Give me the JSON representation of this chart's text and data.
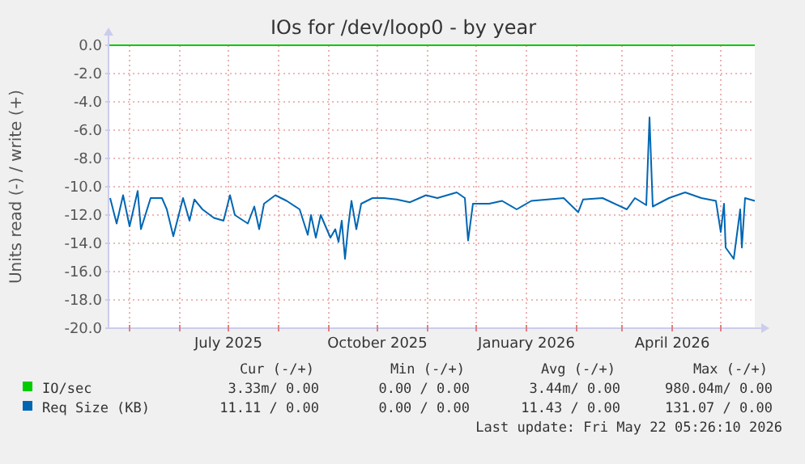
{
  "chart_data": {
    "type": "line",
    "title": "IOs for /dev/loop0 - by year",
    "ylabel": "Units read (-) / write (+)",
    "xlim": [
      "2025-04-18",
      "2026-05-22"
    ],
    "ylim": [
      -20,
      0
    ],
    "xticks": [
      {
        "value": "2025-05-01",
        "label": null
      },
      {
        "value": "2025-06-01",
        "label": null
      },
      {
        "value": "2025-07-01",
        "label": "July 2025"
      },
      {
        "value": "2025-08-01",
        "label": null
      },
      {
        "value": "2025-09-01",
        "label": null
      },
      {
        "value": "2025-10-01",
        "label": "October 2025"
      },
      {
        "value": "2025-11-01",
        "label": null
      },
      {
        "value": "2025-12-01",
        "label": null
      },
      {
        "value": "2026-01-01",
        "label": "January 2026"
      },
      {
        "value": "2026-02-01",
        "label": null
      },
      {
        "value": "2026-03-01",
        "label": null
      },
      {
        "value": "2026-04-01",
        "label": "April 2026"
      },
      {
        "value": "2026-05-01",
        "label": null
      }
    ],
    "yticks": [
      {
        "value": 0,
        "label": "0.0"
      },
      {
        "value": -2,
        "label": "-2.0"
      },
      {
        "value": -4,
        "label": "-4.0"
      },
      {
        "value": -6,
        "label": "-6.0"
      },
      {
        "value": -8,
        "label": "-8.0"
      },
      {
        "value": -10,
        "label": "-10.0"
      },
      {
        "value": -12,
        "label": "-12.0"
      },
      {
        "value": -14,
        "label": "-14.0"
      },
      {
        "value": -16,
        "label": "-16.0"
      },
      {
        "value": -18,
        "label": "-18.0"
      },
      {
        "value": -20,
        "label": "-20.0"
      }
    ],
    "grid": true,
    "legend": "bottom",
    "series": [
      {
        "name": "IO/sec",
        "color": "#00cc00",
        "x": [
          "2025-04-18",
          "2026-05-22"
        ],
        "values": [
          0,
          0
        ]
      },
      {
        "name": "Req Size (KB)",
        "color": "#0066b3",
        "x": [
          "2025-04-19",
          "2025-04-23",
          "2025-04-27",
          "2025-05-01",
          "2025-05-06",
          "2025-05-08",
          "2025-05-14",
          "2025-05-21",
          "2025-05-24",
          "2025-05-28",
          "2025-06-03",
          "2025-06-07",
          "2025-06-10",
          "2025-06-15",
          "2025-06-22",
          "2025-06-28",
          "2025-07-02",
          "2025-07-05",
          "2025-07-13",
          "2025-07-17",
          "2025-07-20",
          "2025-07-23",
          "2025-07-30",
          "2025-08-06",
          "2025-08-14",
          "2025-08-19",
          "2025-08-21",
          "2025-08-24",
          "2025-08-27",
          "2025-09-02",
          "2025-09-05",
          "2025-09-07",
          "2025-09-09",
          "2025-09-11",
          "2025-09-13",
          "2025-09-15",
          "2025-09-18",
          "2025-09-21",
          "2025-09-28",
          "2025-10-05",
          "2025-10-13",
          "2025-10-21",
          "2025-10-31",
          "2025-11-07",
          "2025-11-19",
          "2025-11-24",
          "2025-11-26",
          "2025-11-29",
          "2025-12-09",
          "2025-12-17",
          "2025-12-26",
          "2026-01-04",
          "2026-01-14",
          "2026-01-24",
          "2026-02-02",
          "2026-02-05",
          "2026-02-17",
          "2026-03-04",
          "2026-03-09",
          "2026-03-16",
          "2026-03-18",
          "2026-03-20",
          "2026-03-30",
          "2026-04-09",
          "2026-04-19",
          "2026-04-28",
          "2026-05-01",
          "2026-05-03",
          "2026-05-04",
          "2026-05-09",
          "2026-05-13",
          "2026-05-14",
          "2026-05-16",
          "2026-05-22"
        ],
        "values": [
          -10.8,
          -12.6,
          -10.6,
          -12.8,
          -10.3,
          -13.0,
          -10.8,
          -10.8,
          -11.6,
          -13.5,
          -10.8,
          -12.4,
          -10.9,
          -11.6,
          -12.2,
          -12.4,
          -10.6,
          -12.0,
          -12.6,
          -11.4,
          -13.0,
          -11.2,
          -10.6,
          -11.0,
          -11.6,
          -13.4,
          -12.0,
          -13.6,
          -12.0,
          -13.6,
          -13.0,
          -13.9,
          -12.4,
          -15.1,
          -12.8,
          -11.0,
          -13.0,
          -11.2,
          -10.8,
          -10.8,
          -10.9,
          -11.1,
          -10.6,
          -10.8,
          -10.4,
          -10.8,
          -13.8,
          -11.2,
          -11.2,
          -11.0,
          -11.6,
          -11.0,
          -10.9,
          -10.8,
          -11.8,
          -10.9,
          -10.8,
          -11.6,
          -10.8,
          -11.3,
          -5.1,
          -11.4,
          -10.8,
          -10.4,
          -10.8,
          -11.0,
          -13.2,
          -11.2,
          -14.3,
          -15.1,
          -11.6,
          -14.3,
          -10.8,
          -11.0
        ]
      }
    ],
    "annotations": [
      "Cur (-/+)",
      "Min (-/+)",
      "Avg (-/+)",
      "Max (-/+)",
      "3.33m/ 0.00",
      "0.00 / 0.00",
      "3.44m/ 0.00",
      "980.04m/ 0.00",
      "11.11 / 0.00",
      "0.00 / 0.00",
      "11.43 / 0.00",
      "131.07 / 0.00",
      "Last update: Fri May 22 05:26:10 2026"
    ]
  }
}
